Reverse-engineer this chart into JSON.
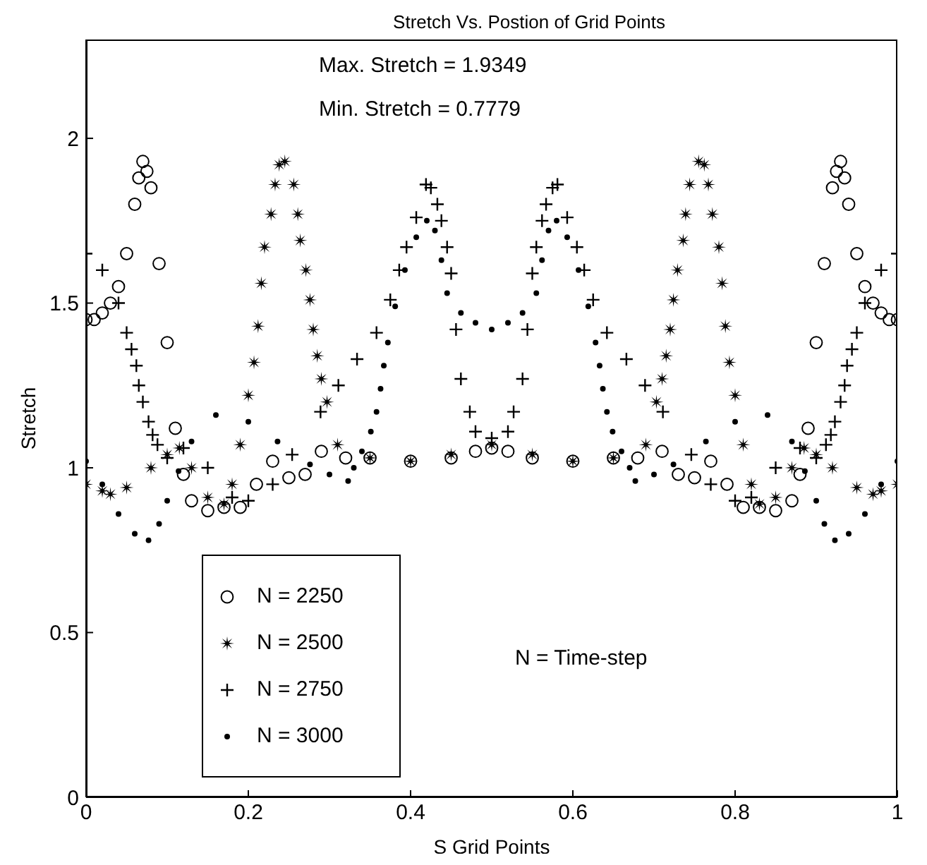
{
  "chart_data": {
    "type": "scatter",
    "title": "Stretch Vs. Postion of Grid Points",
    "xlabel": "S Grid Points",
    "ylabel": "Stretch",
    "annotations": [
      "Max. Stretch = 1.9349",
      "Min. Stretch = 0.7779",
      "N = Time-step"
    ],
    "xlim": [
      0,
      1
    ],
    "xticks": [
      0,
      0.2,
      0.4,
      0.6,
      0.8,
      1
    ],
    "ylim": [
      0,
      2.3
    ],
    "yticks": [
      0,
      0.5,
      1,
      1.5,
      2
    ],
    "grid": false,
    "legend": "bottom left",
    "series": [
      {
        "name": "N = 2250",
        "color": "#000000",
        "marker": "circle",
        "x": [
          0,
          0.01,
          0.02,
          0.03,
          0.04,
          0.05,
          0.06,
          0.065,
          0.07,
          0.075,
          0.08,
          0.09,
          0.1,
          0.11,
          0.12,
          0.13,
          0.15,
          0.17,
          0.19,
          0.21,
          0.23,
          0.25,
          0.27,
          0.29,
          0.32,
          0.35,
          0.4,
          0.45,
          0.48,
          0.5,
          0.52,
          0.55,
          0.6,
          0.65,
          0.68,
          0.71,
          0.73,
          0.75,
          0.77,
          0.79,
          0.81,
          0.83,
          0.85,
          0.87,
          0.88,
          0.89,
          0.9,
          0.91,
          0.92,
          0.925,
          0.93,
          0.935,
          0.94,
          0.95,
          0.96,
          0.97,
          0.98,
          0.99,
          1
        ],
        "values": [
          1.45,
          1.45,
          1.47,
          1.5,
          1.55,
          1.65,
          1.8,
          1.88,
          1.93,
          1.9,
          1.85,
          1.62,
          1.38,
          1.12,
          0.98,
          0.9,
          0.87,
          0.88,
          0.88,
          0.95,
          1.02,
          0.97,
          0.98,
          1.05,
          1.03,
          1.03,
          1.02,
          1.03,
          1.05,
          1.06,
          1.05,
          1.03,
          1.02,
          1.03,
          1.03,
          1.05,
          0.98,
          0.97,
          1.02,
          0.95,
          0.88,
          0.88,
          0.87,
          0.9,
          0.98,
          1.12,
          1.38,
          1.62,
          1.85,
          1.9,
          1.93,
          1.88,
          1.8,
          1.65,
          1.55,
          1.5,
          1.47,
          1.45,
          1.45
        ]
      },
      {
        "name": "N = 2500",
        "color": "#000000",
        "marker": "star",
        "x": [
          0,
          0.02,
          0.03,
          0.05,
          0.08,
          0.1,
          0.115,
          0.13,
          0.15,
          0.17,
          0.18,
          0.19,
          0.2,
          0.207,
          0.212,
          0.216,
          0.22,
          0.228,
          0.233,
          0.238,
          0.245,
          0.256,
          0.261,
          0.264,
          0.271,
          0.276,
          0.28,
          0.285,
          0.29,
          0.297,
          0.31,
          0.35,
          0.4,
          0.45,
          0.5,
          0.55,
          0.6,
          0.65,
          0.69,
          0.703,
          0.71,
          0.715,
          0.72,
          0.724,
          0.729,
          0.736,
          0.739,
          0.744,
          0.755,
          0.762,
          0.767,
          0.772,
          0.78,
          0.784,
          0.788,
          0.793,
          0.8,
          0.81,
          0.82,
          0.83,
          0.85,
          0.87,
          0.885,
          0.9,
          0.92,
          0.95,
          0.97,
          0.98,
          1
        ],
        "values": [
          0.95,
          0.93,
          0.92,
          0.94,
          1.0,
          1.04,
          1.06,
          1.0,
          0.91,
          0.89,
          0.95,
          1.07,
          1.22,
          1.32,
          1.43,
          1.56,
          1.67,
          1.77,
          1.86,
          1.92,
          1.93,
          1.86,
          1.77,
          1.69,
          1.6,
          1.51,
          1.42,
          1.34,
          1.27,
          1.2,
          1.07,
          1.03,
          1.02,
          1.04,
          1.07,
          1.04,
          1.02,
          1.03,
          1.07,
          1.2,
          1.27,
          1.34,
          1.42,
          1.51,
          1.6,
          1.69,
          1.77,
          1.86,
          1.93,
          1.92,
          1.86,
          1.77,
          1.67,
          1.56,
          1.43,
          1.32,
          1.22,
          1.07,
          0.95,
          0.89,
          0.91,
          1.0,
          1.06,
          1.04,
          1.0,
          0.94,
          0.92,
          0.93,
          0.95
        ]
      },
      {
        "name": "N = 2750",
        "color": "#000000",
        "marker": "cross",
        "x": [
          0,
          0.02,
          0.04,
          0.05,
          0.056,
          0.062,
          0.065,
          0.07,
          0.077,
          0.082,
          0.088,
          0.1,
          0.12,
          0.15,
          0.18,
          0.2,
          0.23,
          0.254,
          0.289,
          0.311,
          0.334,
          0.358,
          0.375,
          0.386,
          0.395,
          0.407,
          0.419,
          0.425,
          0.433,
          0.438,
          0.445,
          0.45,
          0.456,
          0.462,
          0.473,
          0.48,
          0.5,
          0.52,
          0.527,
          0.538,
          0.544,
          0.55,
          0.555,
          0.562,
          0.567,
          0.575,
          0.581,
          0.593,
          0.605,
          0.614,
          0.625,
          0.642,
          0.666,
          0.689,
          0.711,
          0.746,
          0.77,
          0.8,
          0.82,
          0.85,
          0.88,
          0.9,
          0.912,
          0.918,
          0.923,
          0.93,
          0.935,
          0.938,
          0.944,
          0.95,
          0.96,
          0.98,
          1
        ],
        "values": [
          1.65,
          1.6,
          1.5,
          1.41,
          1.36,
          1.31,
          1.25,
          1.2,
          1.14,
          1.1,
          1.07,
          1.03,
          1.06,
          1.0,
          0.91,
          0.9,
          0.95,
          1.04,
          1.17,
          1.25,
          1.33,
          1.41,
          1.51,
          1.6,
          1.67,
          1.76,
          1.86,
          1.85,
          1.8,
          1.75,
          1.67,
          1.59,
          1.42,
          1.27,
          1.17,
          1.11,
          1.09,
          1.11,
          1.17,
          1.27,
          1.42,
          1.59,
          1.67,
          1.75,
          1.8,
          1.85,
          1.86,
          1.76,
          1.67,
          1.6,
          1.51,
          1.41,
          1.33,
          1.25,
          1.17,
          1.04,
          0.95,
          0.9,
          0.91,
          1.0,
          1.06,
          1.03,
          1.07,
          1.1,
          1.14,
          1.2,
          1.25,
          1.31,
          1.36,
          1.41,
          1.5,
          1.6,
          1.65
        ]
      },
      {
        "name": "N = 3000",
        "color": "#000000",
        "marker": "circle",
        "x": [
          0,
          0.02,
          0.04,
          0.06,
          0.077,
          0.09,
          0.1,
          0.114,
          0.13,
          0.16,
          0.2,
          0.236,
          0.276,
          0.3,
          0.323,
          0.33,
          0.34,
          0.351,
          0.358,
          0.363,
          0.367,
          0.372,
          0.381,
          0.393,
          0.407,
          0.42,
          0.43,
          0.438,
          0.445,
          0.462,
          0.48,
          0.5,
          0.52,
          0.538,
          0.555,
          0.562,
          0.57,
          0.58,
          0.593,
          0.607,
          0.619,
          0.628,
          0.633,
          0.637,
          0.642,
          0.649,
          0.66,
          0.67,
          0.677,
          0.7,
          0.724,
          0.764,
          0.8,
          0.84,
          0.87,
          0.886,
          0.9,
          0.91,
          0.923,
          0.94,
          0.96,
          0.98,
          1
        ],
        "values": [
          1.02,
          0.95,
          0.86,
          0.8,
          0.78,
          0.83,
          0.9,
          0.99,
          1.08,
          1.16,
          1.14,
          1.08,
          1.01,
          0.98,
          0.96,
          1.0,
          1.05,
          1.11,
          1.17,
          1.24,
          1.31,
          1.38,
          1.49,
          1.6,
          1.7,
          1.75,
          1.72,
          1.63,
          1.53,
          1.47,
          1.44,
          1.42,
          1.44,
          1.47,
          1.53,
          1.63,
          1.72,
          1.75,
          1.7,
          1.6,
          1.49,
          1.38,
          1.31,
          1.24,
          1.17,
          1.11,
          1.05,
          1.0,
          0.96,
          0.98,
          1.01,
          1.08,
          1.14,
          1.16,
          1.08,
          0.99,
          0.9,
          0.83,
          0.78,
          0.8,
          0.86,
          0.95,
          1.02
        ]
      }
    ]
  }
}
